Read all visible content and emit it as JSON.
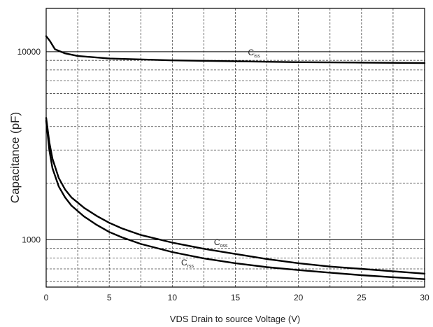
{
  "chart_data": {
    "type": "line",
    "title": "",
    "xlabel": "VDS Drain to source Voltage (V)",
    "ylabel": "Capacitance (pF)",
    "x_scale": "linear",
    "y_scale": "log",
    "xlim": [
      0,
      30
    ],
    "ylim": [
      560,
      17000
    ],
    "x_ticks": [
      0,
      5,
      10,
      15,
      20,
      25,
      30
    ],
    "y_tick_labels": [
      {
        "value": 1000,
        "label": "1000"
      },
      {
        "value": 10000,
        "label": "10000"
      }
    ],
    "grid": true,
    "series": [
      {
        "name": "Ciss",
        "label_main": "C",
        "label_sub": "iss",
        "color": "#000000",
        "points": [
          [
            0,
            12100
          ],
          [
            0.3,
            11400
          ],
          [
            0.7,
            10300
          ],
          [
            1.5,
            9800
          ],
          [
            2.5,
            9500
          ],
          [
            5,
            9200
          ],
          [
            10,
            9000
          ],
          [
            15,
            8900
          ],
          [
            20,
            8800
          ],
          [
            25,
            8750
          ],
          [
            30,
            8700
          ]
        ]
      },
      {
        "name": "Coss",
        "label_main": "C",
        "label_sub": "oss",
        "color": "#000000",
        "points": [
          [
            0,
            4450
          ],
          [
            0.25,
            3300
          ],
          [
            0.5,
            2700
          ],
          [
            1,
            2130
          ],
          [
            1.5,
            1850
          ],
          [
            2,
            1680
          ],
          [
            3,
            1480
          ],
          [
            4,
            1340
          ],
          [
            5,
            1230
          ],
          [
            6,
            1150
          ],
          [
            7.5,
            1060
          ],
          [
            10,
            965
          ],
          [
            12.5,
            895
          ],
          [
            15,
            840
          ],
          [
            17.5,
            790
          ],
          [
            20,
            750
          ],
          [
            22.5,
            720
          ],
          [
            25,
            700
          ],
          [
            27.5,
            680
          ],
          [
            30,
            660
          ]
        ]
      },
      {
        "name": "Crss",
        "label_main": "C",
        "label_sub": "rss",
        "color": "#000000",
        "points": [
          [
            0,
            4300
          ],
          [
            0.25,
            3000
          ],
          [
            0.5,
            2400
          ],
          [
            1,
            1920
          ],
          [
            1.5,
            1680
          ],
          [
            2,
            1520
          ],
          [
            3,
            1330
          ],
          [
            4,
            1200
          ],
          [
            5,
            1100
          ],
          [
            6,
            1030
          ],
          [
            7.5,
            950
          ],
          [
            10,
            860
          ],
          [
            12.5,
            795
          ],
          [
            15,
            750
          ],
          [
            17.5,
            715
          ],
          [
            20,
            690
          ],
          [
            22.5,
            668
          ],
          [
            25,
            648
          ],
          [
            27.5,
            632
          ],
          [
            30,
            617
          ]
        ]
      }
    ]
  }
}
